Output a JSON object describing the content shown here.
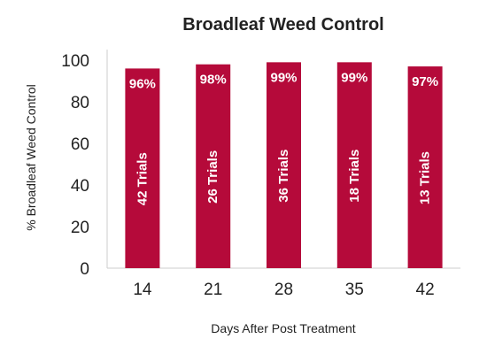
{
  "chart_data": {
    "type": "bar",
    "title": "Broadleaf Weed Control",
    "xlabel": "Days After Post Treatment",
    "ylabel": "% Broadleaf Weed Control",
    "categories": [
      "14",
      "21",
      "28",
      "35",
      "42"
    ],
    "values": [
      96,
      98,
      99,
      99,
      97
    ],
    "value_labels": [
      "96%",
      "98%",
      "99%",
      "99%",
      "97%"
    ],
    "trial_labels": [
      "42 Trials",
      "26 Trials",
      "36 Trials",
      "18 Trials",
      "13 Trials"
    ],
    "ylim": [
      0,
      100
    ],
    "yticks": [
      0,
      20,
      40,
      60,
      80,
      100
    ],
    "grid": false,
    "legend": "none",
    "bar_color": "#b50a3a"
  }
}
